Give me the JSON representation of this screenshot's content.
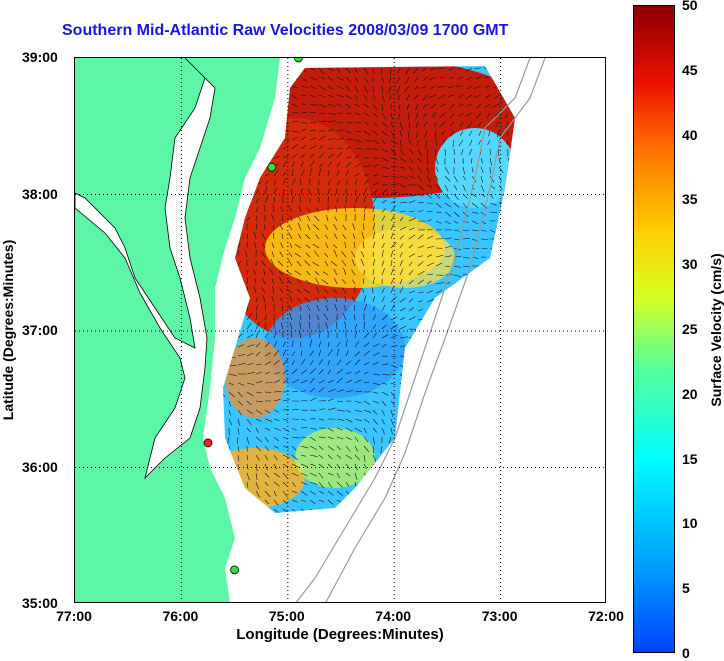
{
  "title": "Southern Mid-Atlantic Raw Velocities 2008/03/09 1700 GMT",
  "xlabel": "Longitude (Degrees:Minutes)",
  "ylabel": "Latitude (Degrees:Minutes)",
  "colorbar": {
    "label": "Surface Velocity (cm/s)",
    "min": 0,
    "max": 50,
    "ticks": [
      "0",
      "5",
      "10",
      "15",
      "20",
      "25",
      "30",
      "35",
      "40",
      "45",
      "50"
    ]
  },
  "axes": {
    "lon_range": [
      -77,
      -72
    ],
    "lat_range": [
      35,
      39
    ],
    "x_ticks": [
      "77:00",
      "76:00",
      "75:00",
      "74:00",
      "73:00",
      "72:00"
    ],
    "y_ticks": [
      "39:00",
      "38:00",
      "37:00",
      "36:00",
      "35:00"
    ]
  },
  "colors": {
    "land": "#5df5a6",
    "title": "#1a17d8",
    "bathymetry": "#999999"
  },
  "stations": [
    {
      "lon": -74.9,
      "lat": 39.0,
      "color": "#3adb3a"
    },
    {
      "lon": -75.15,
      "lat": 38.2,
      "color": "#3adb3a"
    },
    {
      "lon": -75.75,
      "lat": 36.18,
      "color": "#ee2222"
    },
    {
      "lon": -75.5,
      "lat": 35.25,
      "color": "#3adb3a"
    }
  ]
}
